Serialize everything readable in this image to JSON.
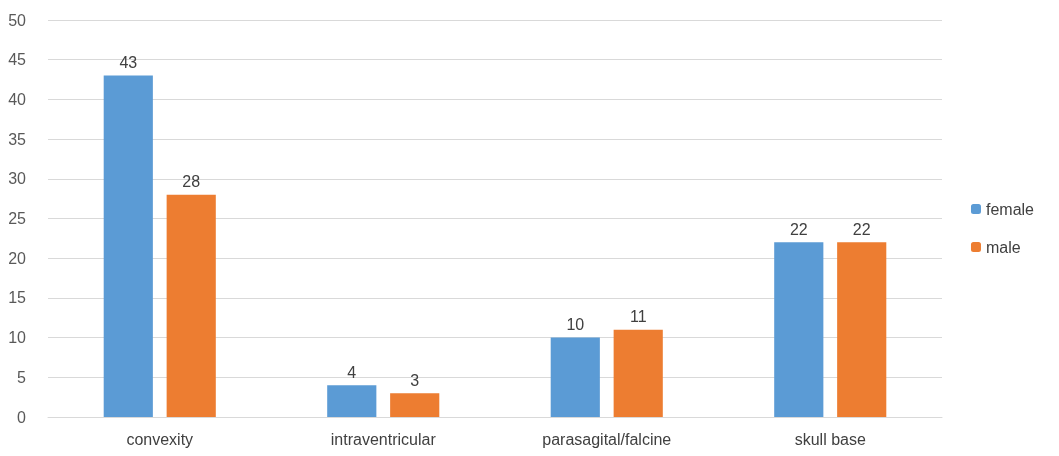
{
  "chart_data": {
    "type": "bar",
    "categories": [
      "convexity",
      "intraventricular",
      "parasagital/falcine",
      "skull base"
    ],
    "series": [
      {
        "name": "female",
        "color": "#5b9bd5",
        "values": [
          43,
          4,
          10,
          22
        ]
      },
      {
        "name": "male",
        "color": "#ed7d31",
        "values": [
          28,
          3,
          11,
          22
        ]
      }
    ],
    "ylim": [
      0,
      50
    ],
    "yticks": [
      0,
      5,
      10,
      15,
      20,
      25,
      30,
      35,
      40,
      45,
      50
    ],
    "grid": "y",
    "legend": "right",
    "data_labels": true
  }
}
